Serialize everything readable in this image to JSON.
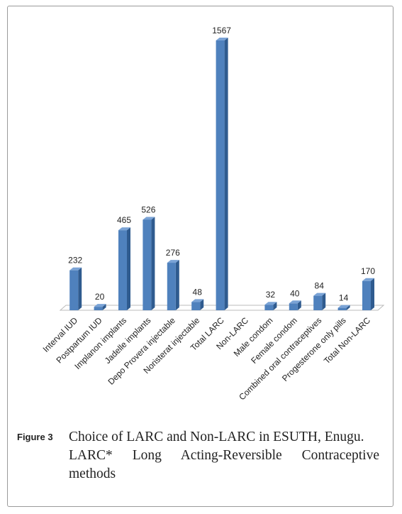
{
  "chart_data": {
    "type": "bar3d",
    "categories": [
      "Interval IUD",
      "Postpartum IUD",
      "Implanon implants",
      "Jadelle implants",
      "Depo Provera injectable",
      "Noristerat injectable",
      "Total  LARC",
      "Non-LARC",
      "Male condom",
      "Female condom",
      "Combined  oral contraceptives",
      "Progesterone only pills",
      "Total  Non-LARC"
    ],
    "values": [
      232,
      20,
      465,
      526,
      276,
      48,
      1567,
      null,
      32,
      40,
      84,
      14,
      170
    ],
    "color": "#4f81bd"
  },
  "figure_label": "Figure 3",
  "caption": [
    "Choice of LARC and Non-LARC in ESUTH, Enugu.",
    "LARC* Long Acting-Reversible Contraceptive methods"
  ]
}
